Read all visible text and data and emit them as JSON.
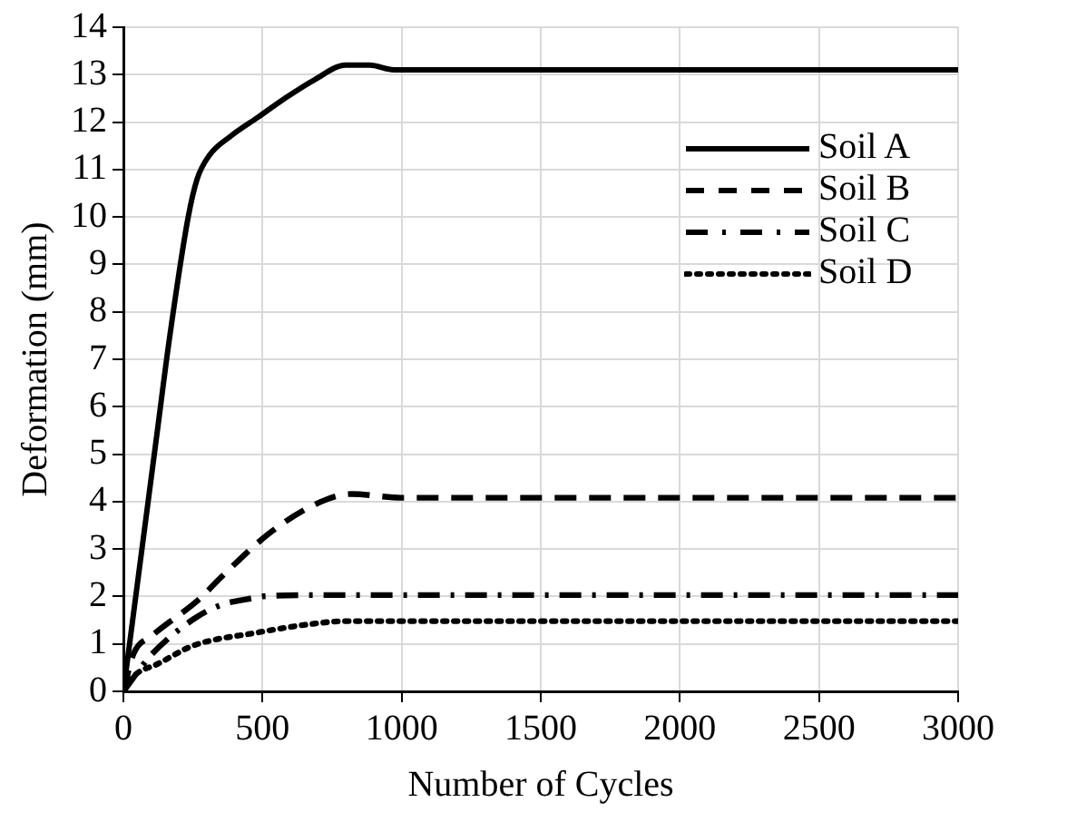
{
  "chart_data": {
    "type": "line",
    "xlabel": "Number of Cycles",
    "ylabel": "Deformation (mm)",
    "xlim": [
      0,
      3000
    ],
    "xticks": [
      0,
      500,
      1000,
      1500,
      2000,
      2500,
      3000
    ],
    "ylim": [
      0,
      14
    ],
    "yticks": [
      0,
      1,
      2,
      3,
      4,
      5,
      6,
      7,
      8,
      9,
      10,
      11,
      12,
      13,
      14
    ],
    "grid": true,
    "legend": "top right",
    "marker": "none",
    "series": [
      {
        "name": "Soil A",
        "color": "#000000",
        "line_style": "solid",
        "x": [
          0,
          120,
          167,
          233,
          265,
          309,
          385,
          483,
          580,
          689,
          798,
          885,
          972,
          3000
        ],
        "values": [
          0,
          5.4,
          7.5,
          10,
          10.8,
          11.3,
          11.7,
          12.1,
          12.5,
          12.9,
          13.2,
          13.2,
          13.1,
          13.1
        ]
      },
      {
        "name": "Soil B",
        "color": "#000000",
        "line_style": "dashed",
        "x": [
          0,
          37,
          102,
          274,
          350,
          535,
          711,
          820,
          1000,
          3000
        ],
        "values": [
          0,
          0.8,
          1.17,
          1.95,
          2.4,
          3.38,
          4,
          4.16,
          4.08,
          4.08
        ]
      },
      {
        "name": "Soil C",
        "color": "#000000",
        "line_style": "dashdot",
        "x": [
          0,
          102,
          254,
          350,
          450,
          515,
          733,
          3000
        ],
        "values": [
          0,
          0.78,
          1.53,
          1.82,
          1.95,
          2.01,
          2.03,
          2.03
        ]
      },
      {
        "name": "Soil D",
        "color": "#000000",
        "line_style": "dotted",
        "x": [
          0,
          37,
          124,
          254,
          472,
          689,
          798,
          3000
        ],
        "values": [
          0,
          0.32,
          0.58,
          0.97,
          1.23,
          1.43,
          1.48,
          1.48
        ]
      }
    ]
  }
}
